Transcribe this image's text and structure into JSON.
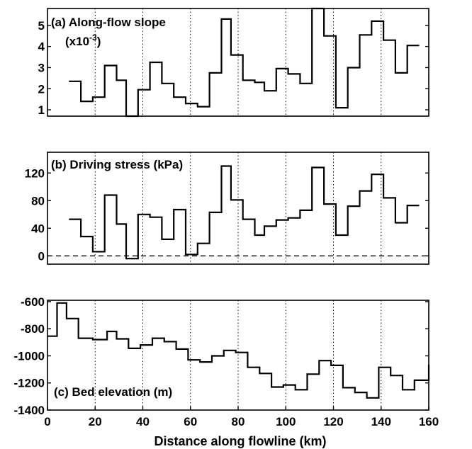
{
  "chart_data": [
    {
      "type": "line",
      "step": true,
      "panel_label": "(a) Along-flow slope",
      "unit_label": "(x10",
      "unit_exponent": "-3",
      "unit_close": ")",
      "xlim": [
        0,
        160
      ],
      "ylim": [
        0.7,
        5.8
      ],
      "yticks": [
        1,
        2,
        3,
        4,
        5
      ],
      "grid_x": [
        20,
        40,
        60,
        80,
        100,
        120,
        140
      ],
      "x": [
        9,
        14,
        19,
        24,
        29,
        33,
        38,
        43,
        48,
        53,
        58,
        63,
        68,
        73,
        77,
        82,
        87,
        91,
        96,
        101,
        106,
        111,
        116,
        121,
        126,
        131,
        136,
        141,
        146,
        151,
        156
      ],
      "y": [
        2.35,
        1.4,
        1.6,
        3.1,
        2.4,
        0.5,
        1.95,
        3.25,
        2.25,
        1.6,
        1.3,
        1.15,
        2.75,
        5.3,
        3.6,
        2.4,
        2.3,
        1.9,
        2.95,
        2.7,
        2.25,
        6.0,
        4.5,
        1.1,
        3.0,
        4.55,
        5.2,
        4.3,
        2.75,
        4.05,
        4.05
      ]
    },
    {
      "type": "line",
      "step": true,
      "panel_label": "(b) Driving stress (kPa)",
      "xlim": [
        0,
        160
      ],
      "ylim": [
        -12,
        150
      ],
      "yticks": [
        0,
        40,
        80,
        120
      ],
      "grid_x": [
        20,
        40,
        60,
        80,
        100,
        120,
        140
      ],
      "zero_line": 0,
      "x": [
        9,
        14,
        19,
        24,
        29,
        33,
        38,
        43,
        48,
        53,
        58,
        63,
        68,
        73,
        77,
        82,
        87,
        91,
        96,
        101,
        106,
        111,
        116,
        121,
        126,
        131,
        136,
        141,
        146,
        151,
        156
      ],
      "y": [
        53,
        28,
        6,
        88,
        46,
        -4,
        60,
        56,
        24,
        67,
        2,
        18,
        63,
        130,
        81,
        53,
        30,
        43,
        52,
        55,
        66,
        128,
        75,
        30,
        72,
        94,
        118,
        84,
        48,
        73,
        73
      ]
    },
    {
      "type": "line",
      "step": true,
      "panel_label": "(c) Bed elevation (m)",
      "xlim": [
        0,
        160
      ],
      "ylim": [
        -1400,
        -590
      ],
      "yticks": [
        -600,
        -800,
        -1000,
        -1200,
        -1400
      ],
      "grid_x": [
        20,
        40,
        60,
        80,
        100,
        120,
        140
      ],
      "xticks": [
        0,
        20,
        40,
        60,
        80,
        100,
        120,
        140,
        160
      ],
      "xlabel": "Distance along flowline (km)",
      "x": [
        0,
        4,
        8,
        13,
        19,
        25,
        29,
        34,
        39,
        44,
        49,
        54,
        59,
        64,
        69,
        74,
        79,
        84,
        89,
        94,
        99,
        104,
        109,
        114,
        119,
        124,
        129,
        134,
        139,
        144,
        149,
        154,
        160
      ],
      "y": [
        -855,
        -610,
        -725,
        -870,
        -880,
        -820,
        -875,
        -945,
        -920,
        -870,
        -895,
        -950,
        -1030,
        -1045,
        -1000,
        -960,
        -975,
        -1085,
        -1130,
        -1230,
        -1215,
        -1250,
        -1135,
        -1035,
        -1070,
        -1235,
        -1270,
        -1310,
        -1085,
        -1145,
        -1250,
        -1180,
        -1065
      ]
    }
  ]
}
